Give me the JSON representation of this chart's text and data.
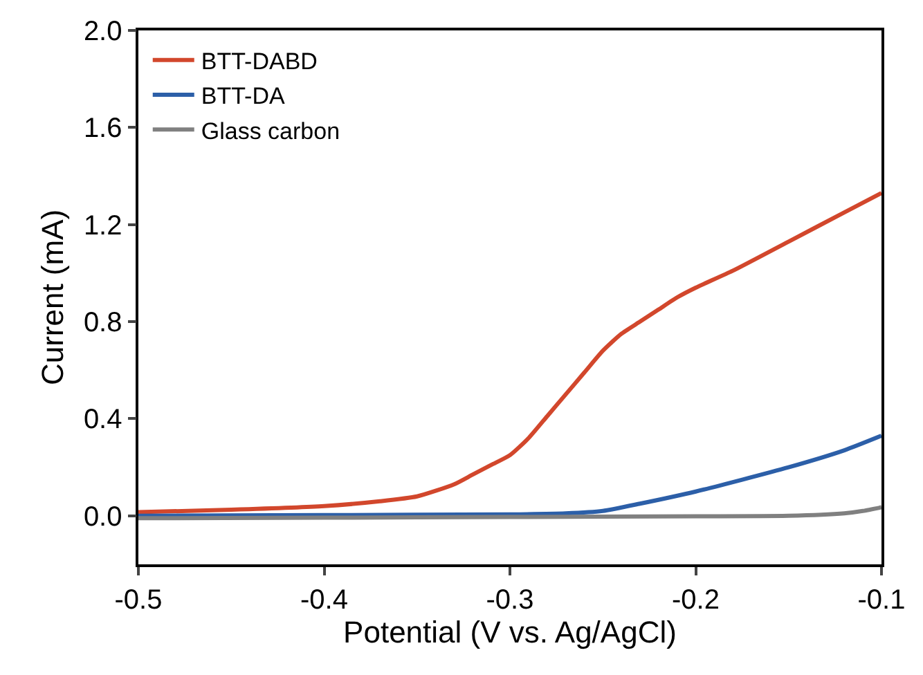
{
  "chart_data": {
    "type": "line",
    "xlabel": "Potential (V vs. Ag/AgCl)",
    "ylabel": "Current (mA)",
    "xlim": [
      -0.5,
      -0.1
    ],
    "xticks": [
      -0.5,
      -0.4,
      -0.3,
      -0.2,
      -0.1
    ],
    "ylim": [
      -0.2,
      2.0
    ],
    "yticks": [
      {
        "value": 0.0,
        "label": "0.0"
      },
      0.4,
      0.8,
      1.2,
      1.6,
      {
        "value": 2.0,
        "label": "2.0"
      }
    ],
    "legend": "top left",
    "marker": "none",
    "line_style": "solid",
    "series": [
      {
        "name": "BTT-DABD",
        "color": "#d2472c",
        "x": [
          -0.5,
          -0.45,
          -0.4,
          -0.37,
          -0.35,
          -0.33,
          -0.32,
          -0.31,
          -0.3,
          -0.29,
          -0.28,
          -0.27,
          -0.26,
          -0.25,
          -0.24,
          -0.23,
          -0.22,
          -0.21,
          -0.2,
          -0.18,
          -0.15,
          -0.12,
          -0.1
        ],
        "values": [
          0.015,
          0.025,
          0.04,
          0.06,
          0.08,
          0.13,
          0.17,
          0.21,
          0.25,
          0.32,
          0.41,
          0.5,
          0.59,
          0.68,
          0.75,
          0.8,
          0.85,
          0.9,
          0.94,
          1.01,
          1.13,
          1.25,
          1.33
        ]
      },
      {
        "name": "BTT-DA",
        "color": "#2c5fa8",
        "x": [
          -0.5,
          -0.4,
          -0.3,
          -0.27,
          -0.25,
          -0.23,
          -0.2,
          -0.15,
          -0.12,
          -0.1
        ],
        "values": [
          0.0,
          0.003,
          0.006,
          0.01,
          0.02,
          0.05,
          0.1,
          0.2,
          0.27,
          0.33
        ]
      },
      {
        "name": "Glass carbon",
        "color": "#808080",
        "x": [
          -0.5,
          -0.4,
          -0.3,
          -0.2,
          -0.15,
          -0.12,
          -0.11,
          -0.1
        ],
        "values": [
          -0.01,
          -0.008,
          -0.005,
          -0.002,
          0.0,
          0.01,
          0.02,
          0.035
        ]
      }
    ]
  }
}
